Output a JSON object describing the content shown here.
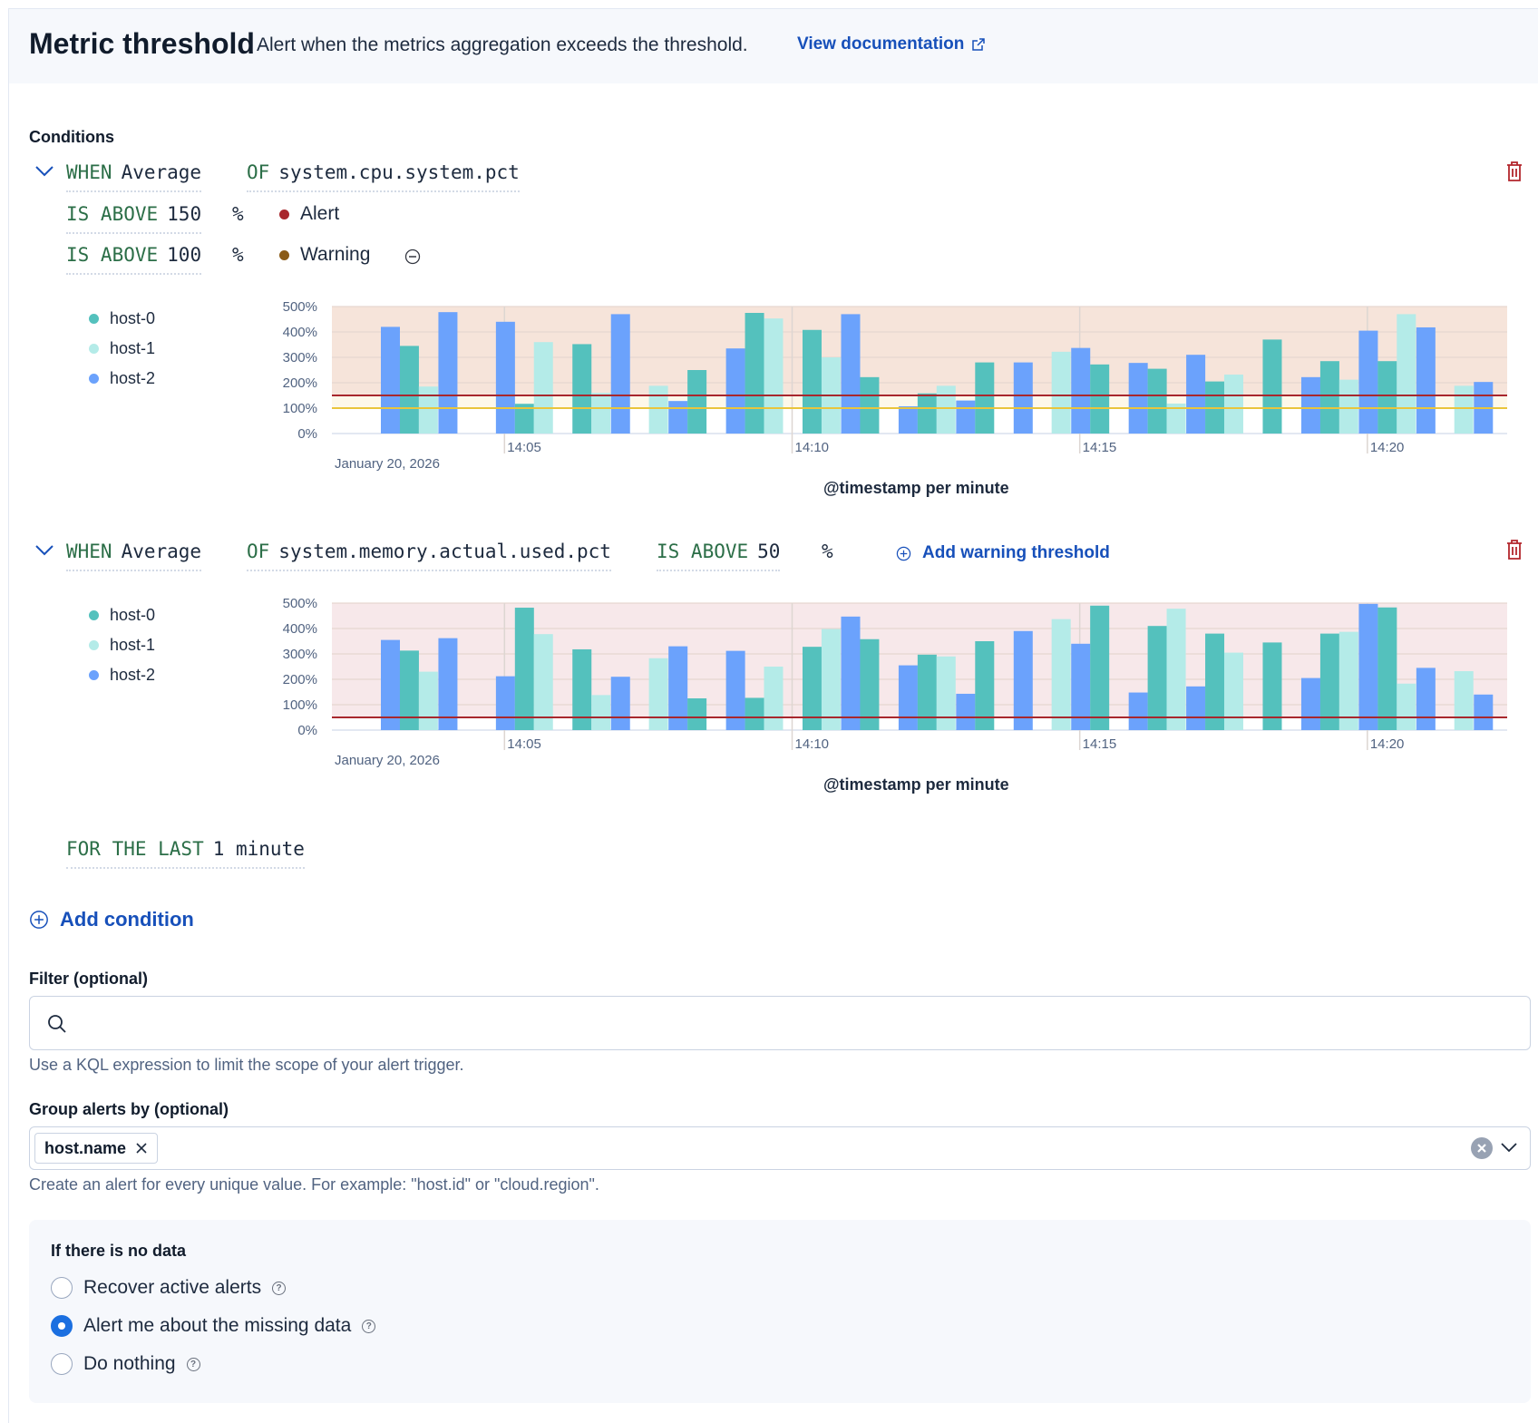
{
  "header": {
    "title": "Metric threshold",
    "subtitle": "Alert when the metrics aggregation exceeds the threshold.",
    "doc_link": "View documentation"
  },
  "conditions_label": "Conditions",
  "colors": {
    "host-0": "#54c1bd",
    "host-1": "#b4ebe8",
    "host-2": "#6ba2fc",
    "alert": "#a8272d",
    "warning": "#e9c53c",
    "warning_dot": "#8a5a16",
    "link": "#1750ba",
    "keyword": "#2b6e47"
  },
  "condition1": {
    "when_kw": "WHEN",
    "agg": "Average",
    "of_kw": "OF",
    "metric": "system.cpu.system.pct",
    "alert_row": {
      "kw": "IS ABOVE",
      "value": "150",
      "unit": "%",
      "severity": "Alert"
    },
    "warning_row": {
      "kw": "IS ABOVE",
      "value": "100",
      "unit": "%",
      "severity": "Warning"
    },
    "legend": [
      "host-0",
      "host-1",
      "host-2"
    ],
    "axis_title": "@timestamp per minute"
  },
  "condition2": {
    "when_kw": "WHEN",
    "agg": "Average",
    "of_kw": "OF",
    "metric": "system.memory.actual.used.pct",
    "above_kw": "IS ABOVE",
    "value": "50",
    "unit": "%",
    "add_warning": "Add warning threshold",
    "legend": [
      "host-0",
      "host-1",
      "host-2"
    ],
    "axis_title": "@timestamp per minute"
  },
  "for_the_last": {
    "kw": "FOR THE LAST",
    "value": "1 minute"
  },
  "add_condition": "Add condition",
  "filter": {
    "label": "Filter (optional)",
    "value": "",
    "placeholder": "",
    "help": "Use a KQL expression to limit the scope of your alert trigger."
  },
  "group_by": {
    "label": "Group alerts by (optional)",
    "chips": [
      "host.name"
    ],
    "help": "Create an alert for every unique value. For example: \"host.id\" or \"cloud.region\"."
  },
  "no_data": {
    "label": "If there is no data",
    "options": [
      {
        "label": "Recover active alerts",
        "checked": false
      },
      {
        "label": "Alert me about the missing data",
        "checked": true
      },
      {
        "label": "Do nothing",
        "checked": false
      }
    ]
  },
  "chart_data": [
    {
      "type": "bar",
      "title": "",
      "xlabel": "@timestamp per minute",
      "ylabel": "",
      "date_label": "January 20, 2026",
      "x_ticks": [
        "14:05",
        "14:10",
        "14:15",
        "14:20"
      ],
      "y_ticks": [
        "0%",
        "100%",
        "200%",
        "300%",
        "400%",
        "500%"
      ],
      "ylim": [
        0,
        500
      ],
      "xlim_minutes": [
        "14:02",
        "14:22:26"
      ],
      "thresholds": [
        {
          "name": "Alert",
          "value": 150,
          "color": "#a8272d"
        },
        {
          "name": "Warning",
          "value": 100,
          "color": "#e9c53c"
        }
      ],
      "legend": [
        "host-0",
        "host-1",
        "host-2"
      ],
      "bars_minute_host_value": [
        [
          0.67,
          "host-2",
          420
        ],
        [
          1.0,
          "host-0",
          345
        ],
        [
          1.33,
          "host-1",
          185
        ],
        [
          1.67,
          "host-2",
          478
        ],
        [
          2.67,
          "host-2",
          440
        ],
        [
          3.0,
          "host-0",
          117
        ],
        [
          3.33,
          "host-1",
          360
        ],
        [
          4.0,
          "host-0",
          352
        ],
        [
          4.33,
          "host-1",
          160
        ],
        [
          4.67,
          "host-2",
          470
        ],
        [
          5.33,
          "host-1",
          188
        ],
        [
          5.67,
          "host-2",
          128
        ],
        [
          6.0,
          "host-0",
          250
        ],
        [
          6.67,
          "host-2",
          335
        ],
        [
          7.0,
          "host-0",
          475
        ],
        [
          7.33,
          "host-1",
          453
        ],
        [
          8.0,
          "host-0",
          408
        ],
        [
          8.33,
          "host-1",
          300
        ],
        [
          8.67,
          "host-2",
          470
        ],
        [
          9.0,
          "host-0",
          222
        ],
        [
          9.67,
          "host-2",
          107
        ],
        [
          10.0,
          "host-0",
          158
        ],
        [
          10.33,
          "host-1",
          188
        ],
        [
          10.67,
          "host-2",
          130
        ],
        [
          11.0,
          "host-0",
          280
        ],
        [
          11.67,
          "host-2",
          280
        ],
        [
          12.33,
          "host-1",
          322
        ],
        [
          12.67,
          "host-2",
          337
        ],
        [
          13.0,
          "host-0",
          272
        ],
        [
          13.67,
          "host-2",
          278
        ],
        [
          14.0,
          "host-0",
          255
        ],
        [
          14.33,
          "host-1",
          118
        ],
        [
          14.67,
          "host-2",
          310
        ],
        [
          15.0,
          "host-0",
          205
        ],
        [
          15.33,
          "host-1",
          232
        ],
        [
          16.0,
          "host-0",
          370
        ],
        [
          16.67,
          "host-2",
          222
        ],
        [
          17.0,
          "host-0",
          285
        ],
        [
          17.33,
          "host-1",
          212
        ],
        [
          17.67,
          "host-2",
          405
        ],
        [
          18.0,
          "host-0",
          285
        ],
        [
          18.33,
          "host-1",
          470
        ],
        [
          18.67,
          "host-2",
          418
        ],
        [
          19.33,
          "host-1",
          188
        ],
        [
          19.67,
          "host-2",
          203
        ]
      ]
    },
    {
      "type": "bar",
      "title": "",
      "xlabel": "@timestamp per minute",
      "ylabel": "",
      "date_label": "January 20, 2026",
      "x_ticks": [
        "14:05",
        "14:10",
        "14:15",
        "14:20"
      ],
      "y_ticks": [
        "0%",
        "100%",
        "200%",
        "300%",
        "400%",
        "500%"
      ],
      "ylim": [
        0,
        500
      ],
      "xlim_minutes": [
        "14:02",
        "14:22:26"
      ],
      "thresholds": [
        {
          "name": "Alert",
          "value": 50,
          "color": "#a8272d"
        }
      ],
      "legend": [
        "host-0",
        "host-1",
        "host-2"
      ],
      "bars_minute_host_value": [
        [
          0.67,
          "host-2",
          355
        ],
        [
          1.0,
          "host-0",
          313
        ],
        [
          1.33,
          "host-1",
          230
        ],
        [
          1.67,
          "host-2",
          362
        ],
        [
          2.67,
          "host-2",
          212
        ],
        [
          3.0,
          "host-0",
          482
        ],
        [
          3.33,
          "host-1",
          378
        ],
        [
          4.0,
          "host-0",
          318
        ],
        [
          4.33,
          "host-1",
          138
        ],
        [
          4.67,
          "host-2",
          210
        ],
        [
          5.33,
          "host-1",
          283
        ],
        [
          5.67,
          "host-2",
          330
        ],
        [
          6.0,
          "host-0",
          125
        ],
        [
          6.67,
          "host-2",
          312
        ],
        [
          7.0,
          "host-0",
          127
        ],
        [
          7.33,
          "host-1",
          250
        ],
        [
          8.0,
          "host-0",
          328
        ],
        [
          8.33,
          "host-1",
          398
        ],
        [
          8.67,
          "host-2",
          447
        ],
        [
          9.0,
          "host-0",
          358
        ],
        [
          9.67,
          "host-2",
          255
        ],
        [
          10.0,
          "host-0",
          297
        ],
        [
          10.33,
          "host-1",
          290
        ],
        [
          10.67,
          "host-2",
          143
        ],
        [
          11.0,
          "host-0",
          350
        ],
        [
          11.67,
          "host-2",
          390
        ],
        [
          12.33,
          "host-1",
          437
        ],
        [
          12.67,
          "host-2",
          340
        ],
        [
          13.0,
          "host-0",
          490
        ],
        [
          13.67,
          "host-2",
          148
        ],
        [
          14.0,
          "host-0",
          410
        ],
        [
          14.33,
          "host-1",
          478
        ],
        [
          14.67,
          "host-2",
          172
        ],
        [
          15.0,
          "host-0",
          380
        ],
        [
          15.33,
          "host-1",
          305
        ],
        [
          16.0,
          "host-0",
          345
        ],
        [
          16.67,
          "host-2",
          205
        ],
        [
          17.0,
          "host-0",
          380
        ],
        [
          17.33,
          "host-1",
          387
        ],
        [
          17.67,
          "host-2",
          497
        ],
        [
          18.0,
          "host-0",
          483
        ],
        [
          18.33,
          "host-1",
          183
        ],
        [
          18.67,
          "host-2",
          245
        ],
        [
          19.33,
          "host-1",
          232
        ],
        [
          19.67,
          "host-2",
          140
        ]
      ]
    }
  ]
}
